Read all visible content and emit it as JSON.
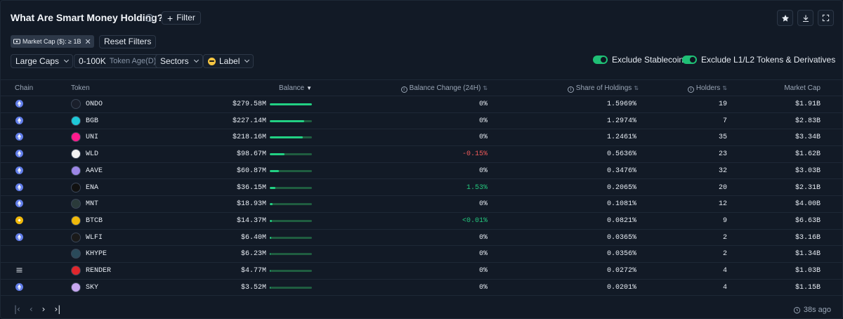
{
  "header": {
    "title": "What Are Smart Money Holding?",
    "filter_label": "Filter"
  },
  "active_filters": {
    "chip_label": "Market Cap ($): ≥ 1B",
    "reset_label": "Reset Filters"
  },
  "controls": {
    "cap_select": "Large Caps",
    "token_age_value": "0-100K",
    "token_age_label": "Token Age(D)",
    "sectors_label": "Sectors",
    "label_select": "Label",
    "toggle_stablecoin": "Exclude Stablecoin",
    "toggle_l1l2": "Exclude L1/L2 Tokens & Derivatives"
  },
  "table": {
    "columns": {
      "chain": "Chain",
      "token": "Token",
      "balance": "Balance",
      "balance_change": "Balance Change (24H)",
      "share": "Share of Holdings",
      "holders": "Holders",
      "market_cap": "Market Cap"
    },
    "rows": [
      {
        "chain": "ethereum",
        "token": "ONDO",
        "balance": "$279.58M",
        "balance_fraction": 1.0,
        "change": "0%",
        "change_dir": "flat",
        "share": "1.5969%",
        "holders": "19",
        "market_cap": "$1.91B",
        "icon_color": "#1a1f2b"
      },
      {
        "chain": "ethereum",
        "token": "BGB",
        "balance": "$227.14M",
        "balance_fraction": 0.81,
        "change": "0%",
        "change_dir": "flat",
        "share": "1.2974%",
        "holders": "7",
        "market_cap": "$2.83B",
        "icon_color": "#1ec8d8"
      },
      {
        "chain": "ethereum",
        "token": "UNI",
        "balance": "$218.16M",
        "balance_fraction": 0.78,
        "change": "0%",
        "change_dir": "flat",
        "share": "1.2461%",
        "holders": "35",
        "market_cap": "$3.34B",
        "icon_color": "#ff1b8d"
      },
      {
        "chain": "ethereum",
        "token": "WLD",
        "balance": "$98.67M",
        "balance_fraction": 0.35,
        "change": "-0.15%",
        "change_dir": "neg",
        "share": "0.5636%",
        "holders": "23",
        "market_cap": "$1.62B",
        "icon_color": "#f2f2f2"
      },
      {
        "chain": "ethereum",
        "token": "AAVE",
        "balance": "$60.87M",
        "balance_fraction": 0.22,
        "change": "0%",
        "change_dir": "flat",
        "share": "0.3476%",
        "holders": "32",
        "market_cap": "$3.03B",
        "icon_color": "#9c86e6"
      },
      {
        "chain": "ethereum",
        "token": "ENA",
        "balance": "$36.15M",
        "balance_fraction": 0.13,
        "change": "1.53%",
        "change_dir": "pos",
        "share": "0.2065%",
        "holders": "20",
        "market_cap": "$2.31B",
        "icon_color": "#111111"
      },
      {
        "chain": "ethereum",
        "token": "MNT",
        "balance": "$18.93M",
        "balance_fraction": 0.07,
        "change": "0%",
        "change_dir": "flat",
        "share": "0.1081%",
        "holders": "12",
        "market_cap": "$4.00B",
        "icon_color": "#2a3a3a"
      },
      {
        "chain": "bnb",
        "token": "BTCB",
        "balance": "$14.37M",
        "balance_fraction": 0.05,
        "change": "<0.01%",
        "change_dir": "pos",
        "share": "0.0821%",
        "holders": "9",
        "market_cap": "$6.63B",
        "icon_color": "#f0b90b"
      },
      {
        "chain": "ethereum",
        "token": "WLFI",
        "balance": "$6.40M",
        "balance_fraction": 0.025,
        "change": "0%",
        "change_dir": "flat",
        "share": "0.0365%",
        "holders": "2",
        "market_cap": "$3.16B",
        "icon_color": "#1a1a1a"
      },
      {
        "chain": "hyperliquid",
        "token": "KHYPE",
        "balance": "$6.23M",
        "balance_fraction": 0.024,
        "change": "0%",
        "change_dir": "flat",
        "share": "0.0356%",
        "holders": "2",
        "market_cap": "$1.34B",
        "icon_color": "#2a4a5a"
      },
      {
        "chain": "solana",
        "token": "RENDER",
        "balance": "$4.77M",
        "balance_fraction": 0.018,
        "change": "0%",
        "change_dir": "flat",
        "share": "0.0272%",
        "holders": "4",
        "market_cap": "$1.03B",
        "icon_color": "#e0262c"
      },
      {
        "chain": "ethereum",
        "token": "SKY",
        "balance": "$3.52M",
        "balance_fraction": 0.013,
        "change": "0%",
        "change_dir": "flat",
        "share": "0.0201%",
        "holders": "4",
        "market_cap": "$1.15B",
        "icon_color": "#c7a7f0"
      }
    ]
  },
  "footer": {
    "updated": "38s ago"
  },
  "colors": {
    "accent_green": "#22d083",
    "negative_red": "#ef5a5a",
    "ethereum": "#627eea",
    "bnb": "#f0b90b",
    "hyperliquid": "#6ef5c8",
    "solana": "#9aa6b6"
  }
}
